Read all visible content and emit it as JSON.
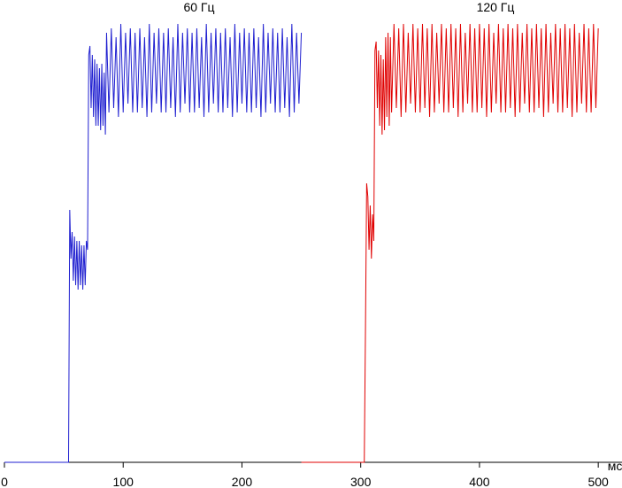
{
  "chart_data": {
    "type": "line",
    "xlabel": "мс",
    "xlim": [
      0,
      520
    ],
    "xticks": [
      0,
      100,
      200,
      300,
      400,
      500
    ],
    "ylim": [
      0,
      100
    ],
    "series": [
      {
        "name": "60 Гц",
        "color": "#1f1fd0",
        "x": [
          0,
          54,
          55,
          56,
          57,
          58,
          59,
          60,
          61,
          62,
          63,
          64,
          65,
          66,
          67,
          68,
          69,
          70,
          71,
          72,
          73,
          74,
          75,
          76,
          77,
          78,
          79,
          80,
          81,
          82,
          83,
          84,
          85,
          86,
          88,
          90,
          92,
          94,
          96,
          98,
          100,
          102,
          104,
          106,
          108,
          110,
          112,
          114,
          116,
          118,
          120,
          122,
          124,
          126,
          128,
          130,
          132,
          134,
          136,
          138,
          140,
          142,
          144,
          146,
          148,
          150,
          152,
          154,
          156,
          158,
          160,
          162,
          164,
          166,
          168,
          170,
          172,
          174,
          176,
          178,
          180,
          182,
          184,
          186,
          188,
          190,
          192,
          194,
          196,
          198,
          200,
          202,
          204,
          206,
          208,
          210,
          212,
          214,
          216,
          218,
          220,
          222,
          224,
          226,
          228,
          230,
          232,
          234,
          236,
          238,
          240,
          242,
          244,
          246,
          248,
          250
        ],
        "values": [
          0,
          0,
          57,
          46,
          52,
          41,
          51,
          40,
          50,
          39,
          50,
          40,
          49,
          39,
          49,
          40,
          50,
          48,
          92,
          94,
          80,
          92,
          78,
          91,
          76,
          90,
          76,
          89,
          75,
          90,
          76,
          88,
          74,
          97,
          79,
          98,
          80,
          96,
          78,
          99,
          79,
          97,
          81,
          98,
          79,
          97,
          79,
          98,
          80,
          96,
          78,
          99,
          79,
          97,
          81,
          98,
          79,
          97,
          79,
          98,
          80,
          96,
          78,
          99,
          79,
          97,
          81,
          98,
          79,
          97,
          79,
          98,
          80,
          96,
          78,
          99,
          79,
          97,
          81,
          98,
          79,
          97,
          79,
          98,
          80,
          96,
          78,
          99,
          79,
          97,
          81,
          98,
          79,
          97,
          79,
          98,
          80,
          96,
          78,
          99,
          79,
          97,
          81,
          98,
          79,
          97,
          79,
          98,
          80,
          96,
          78,
          99,
          79,
          97,
          81,
          97
        ]
      },
      {
        "name": "120 Гц",
        "color": "#e00000",
        "x": [
          250,
          303,
          304,
          305,
          306,
          307,
          308,
          309,
          310,
          311,
          312,
          313,
          314,
          315,
          316,
          317,
          318,
          319,
          320,
          321,
          322,
          323,
          324,
          325,
          326,
          328,
          330,
          332,
          334,
          336,
          338,
          340,
          342,
          344,
          346,
          348,
          350,
          352,
          354,
          356,
          358,
          360,
          362,
          364,
          366,
          368,
          370,
          372,
          374,
          376,
          378,
          380,
          382,
          384,
          386,
          388,
          390,
          392,
          394,
          396,
          398,
          400,
          402,
          404,
          406,
          408,
          410,
          412,
          414,
          416,
          418,
          420,
          422,
          424,
          426,
          428,
          430,
          432,
          434,
          436,
          438,
          440,
          442,
          444,
          446,
          448,
          450,
          452,
          454,
          456,
          458,
          460,
          462,
          464,
          466,
          468,
          470,
          472,
          474,
          476,
          478,
          480,
          482,
          484,
          486,
          488,
          490,
          492,
          494,
          496,
          498,
          500
        ],
        "values": [
          0,
          0,
          30,
          63,
          60,
          48,
          58,
          46,
          56,
          50,
          93,
          95,
          80,
          93,
          76,
          92,
          74,
          91,
          75,
          96,
          78,
          97,
          76,
          96,
          79,
          99,
          80,
          98,
          78,
          99,
          79,
          97,
          81,
          99,
          79,
          98,
          79,
          99,
          80,
          98,
          78,
          99,
          79,
          97,
          81,
          99,
          79,
          98,
          79,
          99,
          80,
          98,
          78,
          99,
          79,
          97,
          81,
          99,
          79,
          98,
          79,
          99,
          80,
          98,
          78,
          99,
          79,
          97,
          81,
          99,
          79,
          98,
          79,
          99,
          80,
          98,
          78,
          99,
          79,
          97,
          81,
          99,
          79,
          98,
          79,
          99,
          80,
          98,
          78,
          99,
          79,
          97,
          81,
          99,
          79,
          98,
          79,
          99,
          80,
          98,
          78,
          99,
          79,
          97,
          81,
          99,
          79,
          98,
          79,
          99,
          80,
          98
        ]
      }
    ]
  }
}
